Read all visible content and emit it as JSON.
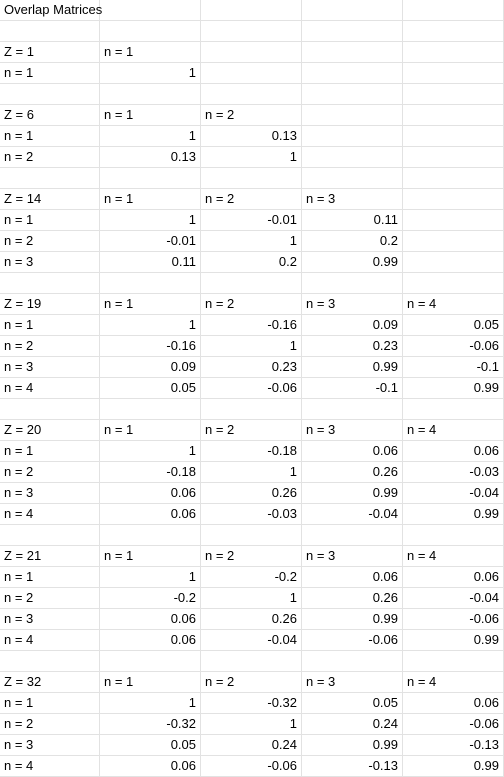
{
  "sheet": {
    "title": "Overlap Matrices",
    "blocks": [
      {
        "z_label": "Z = 1",
        "col_headers": [
          "n = 1"
        ],
        "rows": [
          {
            "label": "n = 1",
            "values": [
              "1"
            ]
          }
        ]
      },
      {
        "z_label": "Z = 6",
        "col_headers": [
          "n = 1",
          "n = 2"
        ],
        "rows": [
          {
            "label": "n = 1",
            "values": [
              "1",
              "0.13"
            ]
          },
          {
            "label": "n = 2",
            "values": [
              "0.13",
              "1"
            ]
          }
        ]
      },
      {
        "z_label": "Z = 14",
        "col_headers": [
          "n = 1",
          "n = 2",
          "n = 3"
        ],
        "rows": [
          {
            "label": "n = 1",
            "values": [
              "1",
              "-0.01",
              "0.11"
            ]
          },
          {
            "label": "n = 2",
            "values": [
              "-0.01",
              "1",
              "0.2"
            ]
          },
          {
            "label": "n = 3",
            "values": [
              "0.11",
              "0.2",
              "0.99"
            ]
          }
        ]
      },
      {
        "z_label": "Z = 19",
        "col_headers": [
          "n = 1",
          "n = 2",
          "n = 3",
          "n = 4"
        ],
        "rows": [
          {
            "label": "n = 1",
            "values": [
              "1",
              "-0.16",
              "0.09",
              "0.05"
            ]
          },
          {
            "label": "n = 2",
            "values": [
              "-0.16",
              "1",
              "0.23",
              "-0.06"
            ]
          },
          {
            "label": "n = 3",
            "values": [
              "0.09",
              "0.23",
              "0.99",
              "-0.1"
            ]
          },
          {
            "label": "n = 4",
            "values": [
              "0.05",
              "-0.06",
              "-0.1",
              "0.99"
            ]
          }
        ]
      },
      {
        "z_label": "Z = 20",
        "col_headers": [
          "n = 1",
          "n = 2",
          "n = 3",
          "n = 4"
        ],
        "rows": [
          {
            "label": "n = 1",
            "values": [
              "1",
              "-0.18",
              "0.06",
              "0.06"
            ]
          },
          {
            "label": "n = 2",
            "values": [
              "-0.18",
              "1",
              "0.26",
              "-0.03"
            ]
          },
          {
            "label": "n = 3",
            "values": [
              "0.06",
              "0.26",
              "0.99",
              "-0.04"
            ]
          },
          {
            "label": "n = 4",
            "values": [
              "0.06",
              "-0.03",
              "-0.04",
              "0.99"
            ]
          }
        ]
      },
      {
        "z_label": "Z = 21",
        "col_headers": [
          "n = 1",
          "n = 2",
          "n = 3",
          "n = 4"
        ],
        "rows": [
          {
            "label": "n = 1",
            "values": [
              "1",
              "-0.2",
              "0.06",
              "0.06"
            ]
          },
          {
            "label": "n = 2",
            "values": [
              "-0.2",
              "1",
              "0.26",
              "-0.04"
            ]
          },
          {
            "label": "n = 3",
            "values": [
              "0.06",
              "0.26",
              "0.99",
              "-0.06"
            ]
          },
          {
            "label": "n = 4",
            "values": [
              "0.06",
              "-0.04",
              "-0.06",
              "0.99"
            ]
          }
        ]
      },
      {
        "z_label": "Z = 32",
        "col_headers": [
          "n = 1",
          "n = 2",
          "n = 3",
          "n = 4"
        ],
        "rows": [
          {
            "label": "n = 1",
            "values": [
              "1",
              "-0.32",
              "0.05",
              "0.06"
            ]
          },
          {
            "label": "n = 2",
            "values": [
              "-0.32",
              "1",
              "0.24",
              "-0.06"
            ]
          },
          {
            "label": "n = 3",
            "values": [
              "0.05",
              "0.24",
              "0.99",
              "-0.13"
            ]
          },
          {
            "label": "n = 4",
            "values": [
              "0.06",
              "-0.06",
              "-0.13",
              "0.99"
            ]
          }
        ]
      }
    ]
  },
  "colors": {
    "gridline": "#e2e2e2",
    "text": "#000000",
    "background": "#ffffff"
  }
}
